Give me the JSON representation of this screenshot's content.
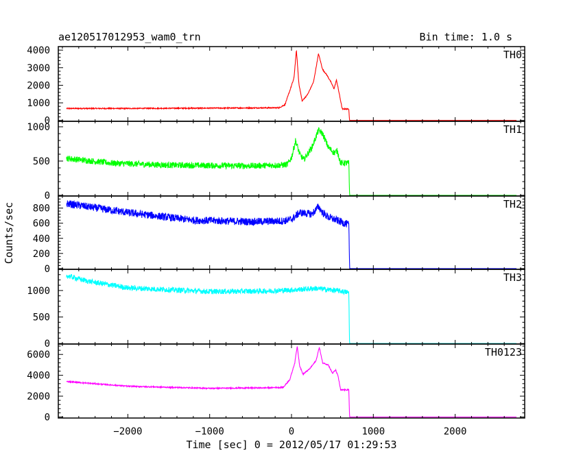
{
  "header": {
    "title": "ae120517012953_wam0_trn",
    "bin_time": "Bin time: 1.0 s"
  },
  "chart_data": {
    "type": "line",
    "xlabel": "Time [sec] 0 = 2012/05/17 01:29:53",
    "ylabel": "Counts/sec",
    "xlim": [
      -2850,
      2850
    ],
    "x_ticks": [
      -2000,
      -1000,
      0,
      1000,
      2000
    ],
    "x_tick_labels": [
      "−2000",
      "−1000",
      "0",
      "1000",
      "2000"
    ],
    "grid": false,
    "panels": [
      {
        "name": "TH0",
        "color": "#ff0000",
        "ylim": [
          -50,
          4200
        ],
        "y_ticks": [
          0,
          1000,
          2000,
          3000,
          4000
        ],
        "noise": 30,
        "x": [
          -2750,
          -2000,
          -1000,
          -500,
          -150,
          -80,
          -20,
          30,
          60,
          90,
          130,
          200,
          270,
          330,
          380,
          430,
          480,
          520,
          550,
          580,
          620,
          700,
          710,
          2750
        ],
        "y": [
          680,
          680,
          700,
          710,
          720,
          900,
          1700,
          2400,
          4000,
          2100,
          1100,
          1500,
          2200,
          3800,
          2900,
          2600,
          2200,
          1800,
          2300,
          1600,
          650,
          650,
          0,
          0
        ]
      },
      {
        "name": "TH1",
        "color": "#00ff00",
        "ylim": [
          -10,
          1080
        ],
        "y_ticks": [
          0,
          500,
          1000
        ],
        "noise": 45,
        "x": [
          -2750,
          -2200,
          -1500,
          -500,
          -150,
          -50,
          0,
          50,
          100,
          150,
          250,
          330,
          380,
          450,
          520,
          560,
          600,
          700,
          710,
          2750
        ],
        "y": [
          540,
          470,
          440,
          430,
          440,
          450,
          550,
          800,
          600,
          520,
          700,
          950,
          900,
          700,
          620,
          650,
          470,
          470,
          0,
          0
        ]
      },
      {
        "name": "TH2",
        "color": "#0000ff",
        "ylim": [
          -10,
          960
        ],
        "y_ticks": [
          0,
          200,
          400,
          600,
          800
        ],
        "noise": 50,
        "x": [
          -2750,
          -2000,
          -1200,
          -500,
          -100,
          0,
          100,
          250,
          330,
          380,
          450,
          600,
          700,
          710,
          2750
        ],
        "y": [
          860,
          740,
          640,
          620,
          630,
          650,
          740,
          720,
          820,
          740,
          680,
          620,
          580,
          0,
          0
        ]
      },
      {
        "name": "TH3",
        "color": "#00ffff",
        "ylim": [
          -10,
          1400
        ],
        "y_ticks": [
          0,
          500,
          1000
        ],
        "noise": 50,
        "x": [
          -2750,
          -2500,
          -2000,
          -1000,
          -300,
          0,
          300,
          600,
          700,
          710,
          2750
        ],
        "y": [
          1280,
          1180,
          1050,
          980,
          990,
          1010,
          1040,
          990,
          960,
          0,
          0
        ]
      },
      {
        "name": "TH0123",
        "color": "#ff00ff",
        "ylim": [
          -100,
          7000
        ],
        "y_ticks": [
          0,
          2000,
          4000,
          6000
        ],
        "noise": 55,
        "x": [
          -2750,
          -2000,
          -1000,
          -300,
          -100,
          -20,
          40,
          70,
          100,
          140,
          220,
          300,
          340,
          380,
          450,
          500,
          540,
          570,
          600,
          700,
          710,
          2750
        ],
        "y": [
          3400,
          2950,
          2750,
          2800,
          2850,
          3600,
          5200,
          6800,
          4900,
          4100,
          4600,
          5400,
          6700,
          5200,
          5000,
          4200,
          4500,
          3900,
          2600,
          2600,
          0,
          0
        ]
      }
    ]
  }
}
